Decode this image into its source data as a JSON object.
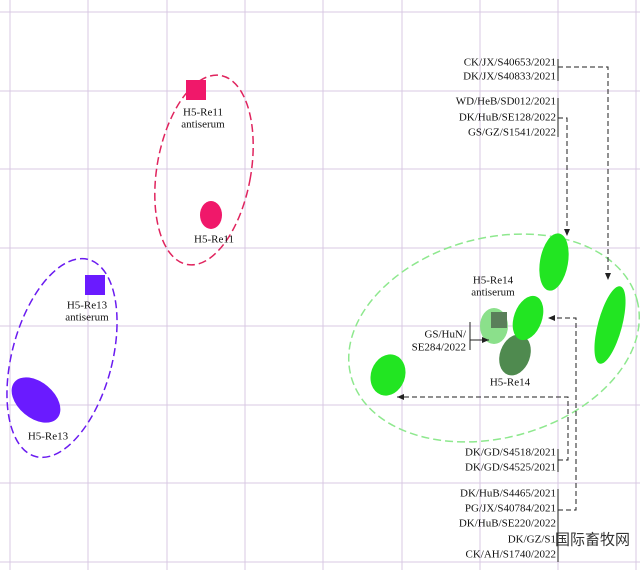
{
  "clusters": [
    {
      "antiserum": [
        "H5-Re11",
        "antiserum"
      ],
      "antigen": "H5-Re11"
    },
    {
      "antiserum": [
        "H5-Re13",
        "antiserum"
      ],
      "antigen": "H5-Re13"
    },
    {
      "antiserum": [
        "H5-Re14",
        "antiserum"
      ],
      "antigen": "H5-Re14"
    }
  ],
  "strain_groups": [
    [
      "CK/JX/S40653/2021",
      "DK/JX/S40833/2021"
    ],
    [
      "WD/HeB/SD012/2021",
      "DK/HuB/SE128/2022",
      "GS/GZ/S1541/2022"
    ],
    [
      "DK/GD/S4518/2021",
      "DK/GD/S4525/2021"
    ],
    [
      "DK/HuB/S4465/2021",
      "PG/JX/S40784/2021",
      "DK/HuB/SE220/2022",
      "DK/GZ/S1",
      "CK/AH/S1740/2022"
    ],
    [
      "GS/HuN/",
      "SE284/2022"
    ]
  ],
  "watermark": "国际畜牧网"
}
